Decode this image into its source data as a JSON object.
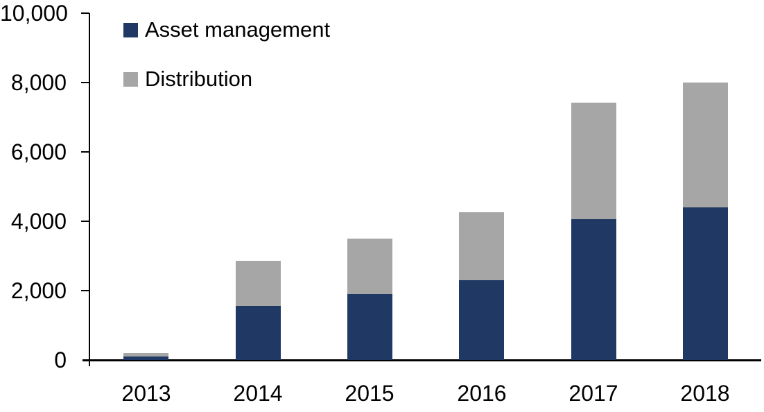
{
  "chart_data": {
    "type": "bar",
    "stacked": true,
    "title": "",
    "xlabel": "",
    "ylabel": "",
    "categories": [
      "2013",
      "2014",
      "2015",
      "2016",
      "2017",
      "2018"
    ],
    "series": [
      {
        "name": "Asset management",
        "color": "#1F3864",
        "values": [
          100,
          1550,
          1900,
          2300,
          4050,
          4400
        ]
      },
      {
        "name": "Distribution",
        "color": "#A6A6A6",
        "values": [
          100,
          1300,
          1600,
          1950,
          3350,
          3600
        ]
      }
    ],
    "totals": [
      200,
      2850,
      3500,
      4250,
      7400,
      8000
    ],
    "ylim": [
      0,
      10000
    ],
    "ytick_interval": 2000,
    "ytick_labels": [
      "0",
      "2,000",
      "4,000",
      "6,000",
      "8,000",
      "10,000"
    ],
    "grid": false,
    "legend_position": "top-left"
  },
  "colors": {
    "axis": "#000000",
    "text": "#000000",
    "background": "#FFFFFF"
  }
}
